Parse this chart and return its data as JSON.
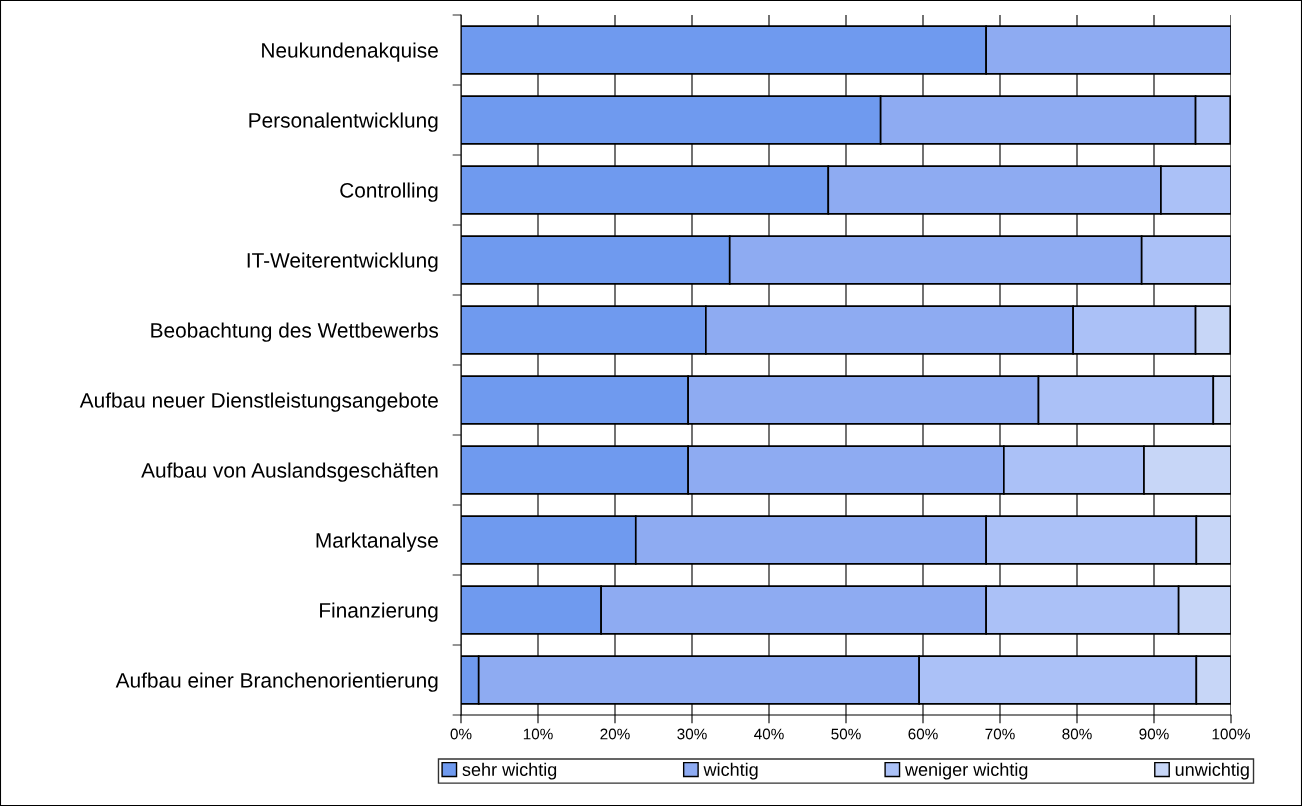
{
  "chart_data": {
    "type": "bar",
    "orientation": "horizontal",
    "stacked": true,
    "categories": [
      "Neukundenakquise",
      "Personalentwicklung",
      "Controlling",
      "IT-Weiterentwicklung",
      "Beobachtung des Wettbewerbs",
      "Aufbau neuer Dienstleistungsangebote",
      "Aufbau von Auslandsgeschäften",
      "Marktanalyse",
      "Finanzierung",
      "Aufbau einer Branchenorientierung"
    ],
    "series": [
      {
        "name": "sehr wichtig",
        "color": "#6f9aef",
        "values": [
          68.2,
          54.5,
          47.7,
          34.9,
          31.8,
          29.5,
          29.5,
          22.7,
          18.2,
          2.3
        ]
      },
      {
        "name": "wichtig",
        "color": "#8eabf2",
        "values": [
          31.8,
          40.9,
          43.2,
          53.5,
          47.7,
          45.5,
          41.0,
          45.5,
          50.0,
          57.2
        ]
      },
      {
        "name": "weniger wichtig",
        "color": "#abc1f7",
        "values": [
          null,
          4.5,
          9.1,
          11.6,
          15.9,
          22.7,
          18.2,
          27.3,
          25.0,
          36.0
        ]
      },
      {
        "name": "unwichtig",
        "color": "#c7d6f7",
        "values": [
          null,
          null,
          null,
          null,
          4.5,
          2.3,
          11.3,
          4.5,
          6.8,
          4.5
        ]
      }
    ],
    "xlim": [
      0,
      100
    ],
    "xticks": [
      {
        "value": 0,
        "label": "0%"
      },
      {
        "value": 10,
        "label": "10%"
      },
      {
        "value": 20,
        "label": "20%"
      },
      {
        "value": 30,
        "label": "30%"
      },
      {
        "value": 40,
        "label": "40%"
      },
      {
        "value": 50,
        "label": "50%"
      },
      {
        "value": 60,
        "label": "60%"
      },
      {
        "value": 70,
        "label": "70%"
      },
      {
        "value": 80,
        "label": "80%"
      },
      {
        "value": 90,
        "label": "90%"
      },
      {
        "value": 100,
        "label": "100%"
      }
    ],
    "grid": "x",
    "legend": "bottom"
  }
}
